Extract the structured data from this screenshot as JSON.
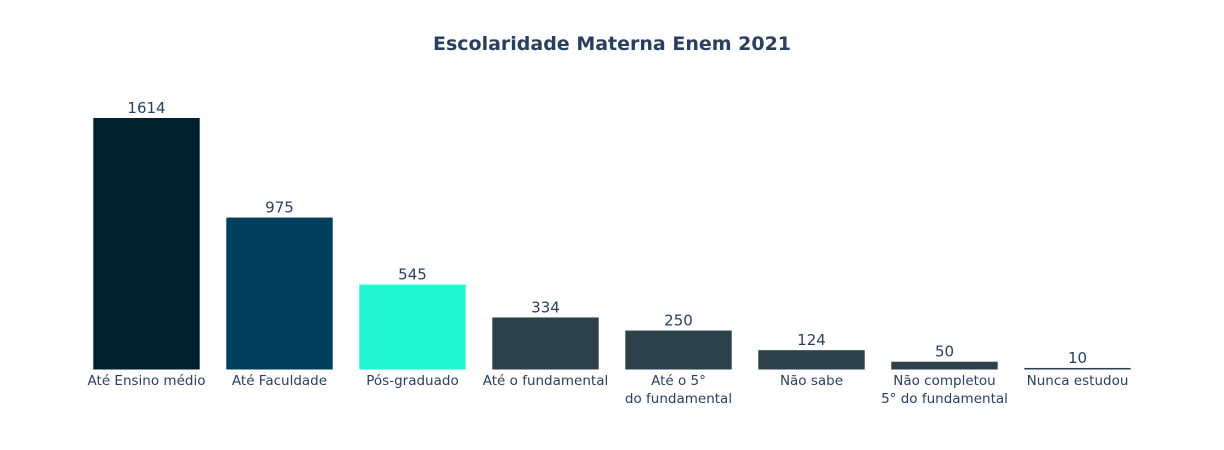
{
  "chart_data": {
    "type": "bar",
    "title": "Escolaridade Materna Enem 2021",
    "xlabel": "",
    "ylabel": "",
    "categories": [
      [
        "Até Ensino médio"
      ],
      [
        "Até Faculdade"
      ],
      [
        "Pós-graduado"
      ],
      [
        "Até o fundamental"
      ],
      [
        "Até o 5°",
        "do fundamental"
      ],
      [
        "Não sabe"
      ],
      [
        "Não completou",
        "5° do fundamental"
      ],
      [
        "Nunca estudou"
      ]
    ],
    "values": [
      1614,
      975,
      545,
      334,
      250,
      124,
      50,
      10
    ],
    "colors": [
      "#00202e",
      "#003f5c",
      "#21f8d1",
      "#2c4149",
      "#2c4149",
      "#2c4149",
      "#2c4149",
      "#2c4149"
    ],
    "ylim": [
      0,
      1700
    ],
    "grid": false,
    "legend": "none"
  }
}
